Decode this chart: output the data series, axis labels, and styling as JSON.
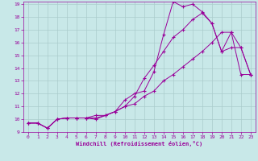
{
  "background_color": "#c8e8e8",
  "grid_color": "#aacccc",
  "line_color": "#990099",
  "marker": "+",
  "xlabel": "Windchill (Refroidissement éolien,°C)",
  "xlim": [
    -0.5,
    23.5
  ],
  "ylim": [
    9,
    19.2
  ],
  "xticks": [
    0,
    1,
    2,
    3,
    4,
    5,
    6,
    7,
    8,
    9,
    10,
    11,
    12,
    13,
    14,
    15,
    16,
    17,
    18,
    19,
    20,
    21,
    22,
    23
  ],
  "yticks": [
    9,
    10,
    11,
    12,
    13,
    14,
    15,
    16,
    17,
    18,
    19
  ],
  "series": [
    {
      "x": [
        0,
        1,
        2,
        3,
        4,
        5,
        6,
        7,
        8,
        9,
        10,
        11,
        12,
        13,
        14,
        15,
        16,
        17,
        18,
        19,
        20,
        21,
        22,
        23
      ],
      "y": [
        9.7,
        9.7,
        9.3,
        10.0,
        10.1,
        10.1,
        10.1,
        10.0,
        10.3,
        10.6,
        11.5,
        12.0,
        12.2,
        13.7,
        16.6,
        19.2,
        18.8,
        19.0,
        18.4,
        17.5,
        15.3,
        15.6,
        15.6,
        13.5
      ]
    },
    {
      "x": [
        0,
        1,
        2,
        3,
        4,
        5,
        6,
        7,
        8,
        9,
        10,
        11,
        12,
        13,
        14,
        15,
        16,
        17,
        18,
        19,
        20,
        21,
        22,
        23
      ],
      "y": [
        9.7,
        9.7,
        9.3,
        10.0,
        10.1,
        10.1,
        10.1,
        10.3,
        10.3,
        10.6,
        11.0,
        11.8,
        13.2,
        14.2,
        15.3,
        16.4,
        17.0,
        17.8,
        18.3,
        17.5,
        15.3,
        16.8,
        15.6,
        13.5
      ]
    },
    {
      "x": [
        0,
        1,
        2,
        3,
        4,
        5,
        6,
        7,
        8,
        9,
        10,
        11,
        12,
        13,
        14,
        15,
        16,
        17,
        18,
        19,
        20,
        21,
        22,
        23
      ],
      "y": [
        9.7,
        9.7,
        9.3,
        10.0,
        10.1,
        10.1,
        10.1,
        10.1,
        10.3,
        10.6,
        11.0,
        11.2,
        11.8,
        12.2,
        13.0,
        13.5,
        14.1,
        14.7,
        15.3,
        16.0,
        16.8,
        16.8,
        13.5,
        13.5
      ]
    }
  ]
}
